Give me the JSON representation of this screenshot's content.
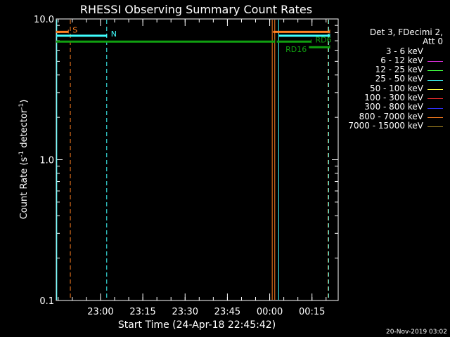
{
  "chart_data": {
    "type": "line",
    "title": "RHESSI Observing Summary Count Rates",
    "xlabel": "Start Time (24-Apr-18 22:45:42)",
    "ylabel_main": "Count Rate (s",
    "ylabel_sup1": "-1",
    "ylabel_mid": " detector",
    "ylabel_sup2": "-1",
    "ylabel_end": ")",
    "y_scale": "log",
    "ylim": [
      0.1,
      10.0
    ],
    "y_ticks": [
      {
        "value": 10.0,
        "label": "10.0"
      },
      {
        "value": 1.0,
        "label": "1.0"
      },
      {
        "value": 0.1,
        "label": "0.1"
      }
    ],
    "x_range_minutes": [
      -15.7,
      84.3
    ],
    "x_ticks": [
      {
        "t": 0,
        "label": "23:00"
      },
      {
        "t": 15,
        "label": "23:15"
      },
      {
        "t": 30,
        "label": "23:30"
      },
      {
        "t": 45,
        "label": "23:45"
      },
      {
        "t": 60,
        "label": "00:00"
      },
      {
        "t": 75,
        "label": "00:15"
      }
    ],
    "x_minor_step_min": 5,
    "legend_header_1": "Det 3, FDecimi 2,",
    "legend_header_2": "Att 0",
    "legend": [
      {
        "label": "3 - 6 keV",
        "color": "#000000"
      },
      {
        "label": "6 - 12 keV",
        "color": "#e030e0"
      },
      {
        "label": "12 - 25 keV",
        "color": "#40ff40"
      },
      {
        "label": "25 - 50 keV",
        "color": "#40ffff"
      },
      {
        "label": "50 - 100 keV",
        "color": "#ffff40"
      },
      {
        "label": "100 - 300 keV",
        "color": "#ff3030"
      },
      {
        "label": "300 - 800 keV",
        "color": "#3030ff"
      },
      {
        "label": "800 - 7000 keV",
        "color": "#ff8020"
      },
      {
        "label": "7000 - 15000 keV",
        "color": "#a08020"
      }
    ],
    "flag_bars": [
      {
        "label": "S",
        "t0": -15.7,
        "t1": -11.4,
        "y": 8.1,
        "color": "#ff8020",
        "label_side": "right"
      },
      {
        "label": "N",
        "t0": -15.7,
        "t1": 2.2,
        "y": 7.6,
        "color": "#40ffff",
        "label_side": "right"
      },
      {
        "label": "",
        "t0": -15.7,
        "t1": 61.7,
        "y": 6.9,
        "color": "#10a010"
      },
      {
        "label": "",
        "t0": 61.2,
        "t1": 81.3,
        "y": 8.1,
        "color": "#ff8020"
      },
      {
        "label": "",
        "t0": 63.2,
        "t1": 81.3,
        "y": 7.6,
        "color": "#40ffff"
      },
      {
        "label": "RD6",
        "t0": 62.5,
        "t1": 74.7,
        "y": 6.9,
        "color": "#10a010",
        "label_side": "right"
      },
      {
        "label": "RD16",
        "t0": 73.9,
        "t1": 81.3,
        "y": 6.3,
        "color": "#10a010",
        "label_side": "left"
      }
    ],
    "vertical_lines": [
      {
        "t": -15.5,
        "color": "#40ffff",
        "style": "solid"
      },
      {
        "t": -10.7,
        "color": "#ff8020",
        "style": "dashed"
      },
      {
        "t": 2.2,
        "color": "#40ffff",
        "style": "dashed"
      },
      {
        "t": 60.9,
        "color": "#ff8020",
        "style": "solid"
      },
      {
        "t": 61.8,
        "color": "#ff8020",
        "style": "solid"
      },
      {
        "t": 63.2,
        "color": "#40ffff",
        "style": "solid"
      },
      {
        "t": 80.7,
        "color": "#ff8020",
        "style": "dashed"
      },
      {
        "t": 80.9,
        "color": "#40ffff",
        "style": "dashed"
      }
    ],
    "grid": false
  },
  "footer_stamp": "20-Nov-2019 03:02"
}
